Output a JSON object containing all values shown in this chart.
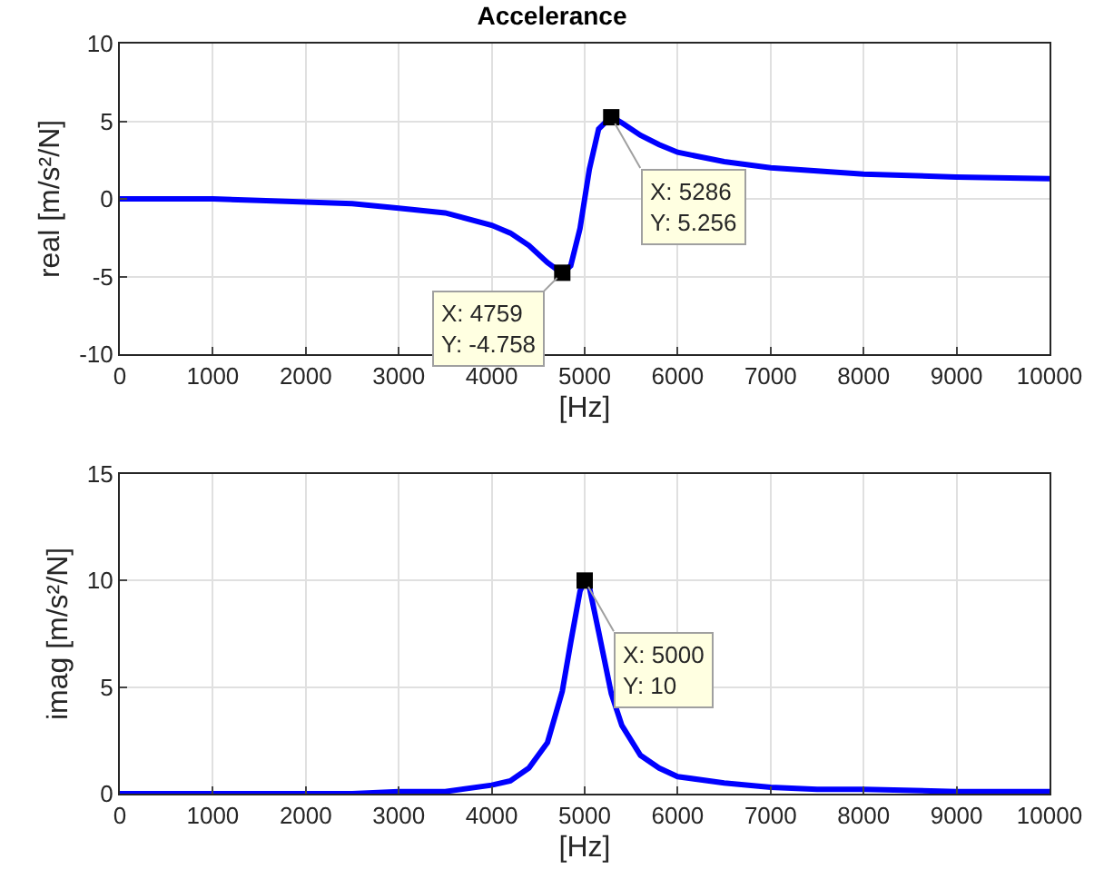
{
  "chart_data": [
    {
      "type": "line",
      "title": "Accelerance",
      "xlabel": "[Hz]",
      "ylabel": "real [m/s²/N]",
      "xlim": [
        0,
        10000
      ],
      "xticks": [
        0,
        1000,
        2000,
        3000,
        4000,
        5000,
        6000,
        7000,
        8000,
        9000,
        10000
      ],
      "ylim": [
        -10,
        10
      ],
      "yticks": [
        -10,
        -5,
        0,
        5,
        10
      ],
      "grid": true,
      "series": [
        {
          "color": "#0000ff",
          "x": [
            0,
            500,
            1000,
            1500,
            2000,
            2500,
            3000,
            3500,
            4000,
            4200,
            4400,
            4600,
            4759,
            4850,
            4950,
            5000,
            5050,
            5150,
            5286,
            5400,
            5600,
            5800,
            6000,
            6500,
            7000,
            7500,
            8000,
            9000,
            10000
          ],
          "values": [
            0,
            0,
            0,
            -0.1,
            -0.2,
            -0.3,
            -0.6,
            -0.9,
            -1.7,
            -2.2,
            -3.0,
            -4.1,
            -4.8,
            -4.3,
            -1.9,
            0,
            1.9,
            4.5,
            5.3,
            4.9,
            4.1,
            3.5,
            3.0,
            2.4,
            2.0,
            1.8,
            1.6,
            1.4,
            1.3
          ]
        },
        {
          "type": "scatter",
          "marker": "square",
          "color": "#000000",
          "x": [
            4759,
            5286
          ],
          "values": [
            -4.758,
            5.256
          ]
        }
      ],
      "annotations": [
        {
          "text": "X: 4759\nY: -4.758",
          "x": 4759,
          "y": -4.758
        },
        {
          "text": "X: 5286\nY: 5.256",
          "x": 5286,
          "y": 5.256
        }
      ]
    },
    {
      "type": "line",
      "xlabel": "[Hz]",
      "ylabel": "imag [m/s²/N]",
      "xlim": [
        0,
        10000
      ],
      "xticks": [
        0,
        1000,
        2000,
        3000,
        4000,
        5000,
        6000,
        7000,
        8000,
        9000,
        10000
      ],
      "ylim": [
        0,
        15
      ],
      "yticks": [
        0,
        5,
        10,
        15
      ],
      "grid": true,
      "series": [
        {
          "color": "#0000ff",
          "x": [
            0,
            500,
            1000,
            1500,
            2000,
            2500,
            3000,
            3500,
            4000,
            4200,
            4400,
            4600,
            4759,
            4850,
            4950,
            5000,
            5050,
            5150,
            5286,
            5400,
            5600,
            5800,
            6000,
            6500,
            7000,
            7500,
            8000,
            9000,
            10000
          ],
          "values": [
            0,
            0,
            0,
            0,
            0,
            0,
            0.1,
            0.1,
            0.4,
            0.6,
            1.2,
            2.4,
            4.8,
            7.1,
            9.5,
            10,
            9.7,
            7.6,
            4.7,
            3.2,
            1.8,
            1.2,
            0.8,
            0.5,
            0.3,
            0.2,
            0.2,
            0.1,
            0.1
          ]
        },
        {
          "type": "scatter",
          "marker": "square",
          "color": "#000000",
          "x": [
            5000
          ],
          "values": [
            10
          ]
        }
      ],
      "annotations": [
        {
          "text": "X: 5000\nY: 10",
          "x": 5000,
          "y": 10
        }
      ]
    }
  ]
}
